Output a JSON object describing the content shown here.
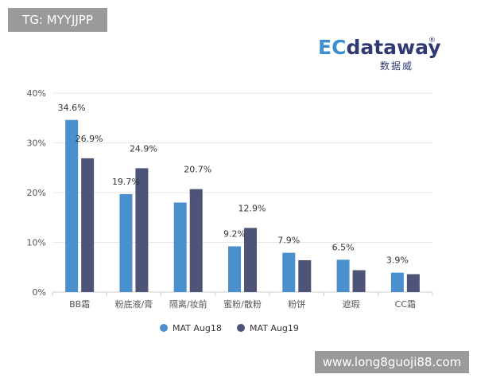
{
  "watermarks": {
    "top_left": "TG: MYYJJPP",
    "bottom_right": "www.long8guoji88.com"
  },
  "logo": {
    "ec": "EC",
    "rest": "dataway",
    "reg": "®",
    "cn": "数据威"
  },
  "colors": {
    "series1": "#4a8fce",
    "series2": "#4e5477",
    "grid": "#e6e6e6",
    "axis_text": "#555555",
    "label_text": "#333333"
  },
  "chart_data": {
    "type": "bar",
    "title": "",
    "xlabel": "",
    "ylabel": "",
    "ylim": [
      0,
      40
    ],
    "y_ticks": [
      "0%",
      "10%",
      "20%",
      "30%",
      "40%"
    ],
    "grid": true,
    "legend_position": "bottom",
    "categories": [
      "BB霜",
      "粉底液/膏",
      "隔离/妆前",
      "蜜粉/散粉",
      "粉饼",
      "遮瑕",
      "CC霜"
    ],
    "series": [
      {
        "name": "MAT Aug18",
        "values": [
          34.6,
          19.7,
          18.0,
          9.2,
          7.9,
          6.5,
          3.9
        ],
        "labels": [
          "34.6%",
          "19.7%",
          "",
          "9.2%",
          "7.9%",
          "6.5%",
          "3.9%"
        ]
      },
      {
        "name": "MAT Aug19",
        "values": [
          26.9,
          24.9,
          20.7,
          12.9,
          6.4,
          4.4,
          3.6
        ],
        "labels": [
          "26.9%",
          "24.9%",
          "20.7%",
          "12.9%",
          "",
          "",
          ""
        ]
      }
    ]
  }
}
